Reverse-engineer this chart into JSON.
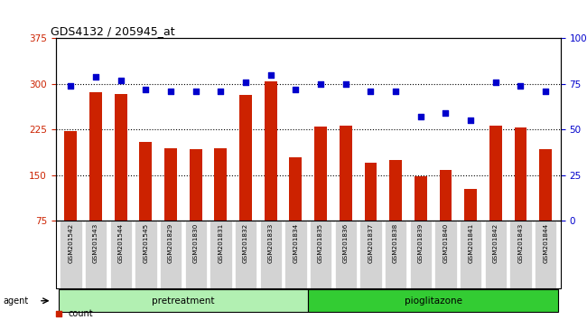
{
  "title": "GDS4132 / 205945_at",
  "samples": [
    "GSM201542",
    "GSM201543",
    "GSM201544",
    "GSM201545",
    "GSM201829",
    "GSM201830",
    "GSM201831",
    "GSM201832",
    "GSM201833",
    "GSM201834",
    "GSM201835",
    "GSM201836",
    "GSM201837",
    "GSM201838",
    "GSM201839",
    "GSM201840",
    "GSM201841",
    "GSM201842",
    "GSM201843",
    "GSM201844"
  ],
  "counts": [
    222,
    287,
    284,
    205,
    195,
    193,
    195,
    282,
    305,
    180,
    230,
    232,
    170,
    175,
    148,
    158,
    128,
    232,
    228,
    193
  ],
  "percentiles": [
    74,
    79,
    77,
    72,
    71,
    71,
    71,
    76,
    80,
    72,
    75,
    75,
    71,
    71,
    57,
    59,
    55,
    76,
    74,
    71
  ],
  "bar_color": "#cc2200",
  "dot_color": "#0000cc",
  "ylim_left": [
    75,
    375
  ],
  "ylim_right": [
    0,
    100
  ],
  "yticks_left": [
    75,
    150,
    225,
    300,
    375
  ],
  "yticks_right": [
    0,
    25,
    50,
    75,
    100
  ],
  "pretreatment_color": "#b2f0b2",
  "pioglitazone_color": "#33cc33",
  "bar_width": 0.5,
  "tick_bg_color": "#d3d3d3",
  "n_pretreatment": 10,
  "n_pioglitazone": 10
}
